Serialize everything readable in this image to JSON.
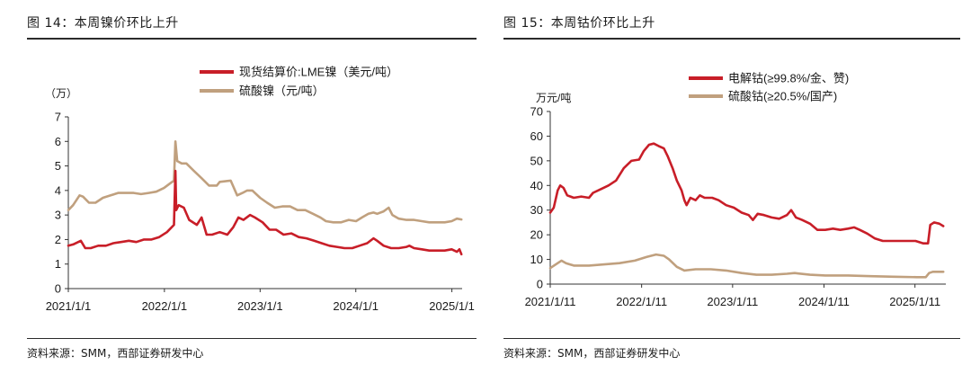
{
  "figures": [
    {
      "title": "图 14：本周镍价环比上升",
      "source": "资料来源：SMM，西部证券研发中心",
      "unit": "（万）",
      "legend": [
        "现货结算价:LME镍（美元/吨）",
        "硫酸镍（元/吨）"
      ]
    },
    {
      "title": "图 15：本周钴价环比上升",
      "source": "资料来源：SMM，西部证券研发中心",
      "unit": "万元/吨",
      "legend": [
        "电解钴(≥99.8%/金、赞)",
        "硫酸钴(≥20.5%/国产)"
      ]
    }
  ],
  "chart_data": [
    {
      "type": "line",
      "x_ticks": [
        "2021/1/1",
        "2022/1/1",
        "2023/1/1",
        "2024/1/1",
        "2025/1/1"
      ],
      "xlim": [
        "2021/1/1",
        "2025/5/1"
      ],
      "ylim": [
        0,
        7
      ],
      "y_ticks": [
        0,
        1,
        2,
        3,
        4,
        5,
        6,
        7
      ],
      "series": [
        {
          "name": "现货结算价:LME镍（美元/吨）",
          "color": "#c81e28",
          "points": [
            [
              "2021/1/1",
              1.75
            ],
            [
              "2021/1/20",
              1.8
            ],
            [
              "2021/2/20",
              1.95
            ],
            [
              "2021/3/10",
              1.65
            ],
            [
              "2021/4/1",
              1.65
            ],
            [
              "2021/5/1",
              1.75
            ],
            [
              "2021/6/1",
              1.75
            ],
            [
              "2021/7/1",
              1.85
            ],
            [
              "2021/8/1",
              1.9
            ],
            [
              "2021/9/1",
              1.95
            ],
            [
              "2021/10/1",
              1.9
            ],
            [
              "2021/11/1",
              2.0
            ],
            [
              "2021/12/1",
              2.0
            ],
            [
              "2022/1/1",
              2.1
            ],
            [
              "2022/2/1",
              2.3
            ],
            [
              "2022/3/1",
              2.6
            ],
            [
              "2022/3/7",
              4.8
            ],
            [
              "2022/3/10",
              3.2
            ],
            [
              "2022/3/20",
              3.4
            ],
            [
              "2022/4/10",
              3.3
            ],
            [
              "2022/5/1",
              2.8
            ],
            [
              "2022/6/1",
              2.6
            ],
            [
              "2022/6/20",
              2.9
            ],
            [
              "2022/7/10",
              2.2
            ],
            [
              "2022/8/1",
              2.2
            ],
            [
              "2022/9/1",
              2.3
            ],
            [
              "2022/10/1",
              2.2
            ],
            [
              "2022/10/25",
              2.5
            ],
            [
              "2022/11/15",
              2.9
            ],
            [
              "2022/12/5",
              2.8
            ],
            [
              "2023/1/1",
              3.0
            ],
            [
              "2023/1/20",
              2.9
            ],
            [
              "2023/2/20",
              2.7
            ],
            [
              "2023/3/20",
              2.4
            ],
            [
              "2023/4/15",
              2.4
            ],
            [
              "2023/5/15",
              2.2
            ],
            [
              "2023/6/15",
              2.25
            ],
            [
              "2023/7/15",
              2.1
            ],
            [
              "2023/8/15",
              2.05
            ],
            [
              "2023/9/15",
              1.95
            ],
            [
              "2023/10/15",
              1.85
            ],
            [
              "2023/11/15",
              1.75
            ],
            [
              "2023/12/15",
              1.7
            ],
            [
              "2024/1/15",
              1.65
            ],
            [
              "2024/2/15",
              1.65
            ],
            [
              "2024/3/15",
              1.75
            ],
            [
              "2024/4/15",
              1.85
            ],
            [
              "2024/5/10",
              2.05
            ],
            [
              "2024/5/25",
              1.95
            ],
            [
              "2024/6/20",
              1.75
            ],
            [
              "2024/7/20",
              1.65
            ],
            [
              "2024/8/20",
              1.65
            ],
            [
              "2024/9/20",
              1.7
            ],
            [
              "2024/10/1",
              1.75
            ],
            [
              "2024/10/20",
              1.65
            ],
            [
              "2024/11/20",
              1.6
            ],
            [
              "2024/12/20",
              1.55
            ],
            [
              "2025/1/20",
              1.55
            ],
            [
              "2025/2/20",
              1.55
            ],
            [
              "2025/3/20",
              1.6
            ],
            [
              "2025/4/10",
              1.5
            ],
            [
              "2025/4/20",
              1.6
            ],
            [
              "2025/4/28",
              1.4
            ]
          ]
        },
        {
          "name": "硫酸镍（元/吨）",
          "color": "#c0a07e",
          "points": [
            [
              "2021/1/1",
              3.2
            ],
            [
              "2021/1/20",
              3.4
            ],
            [
              "2021/2/15",
              3.8
            ],
            [
              "2021/3/1",
              3.75
            ],
            [
              "2021/3/25",
              3.5
            ],
            [
              "2021/4/20",
              3.5
            ],
            [
              "2021/5/20",
              3.7
            ],
            [
              "2021/6/20",
              3.8
            ],
            [
              "2021/7/20",
              3.9
            ],
            [
              "2021/8/20",
              3.9
            ],
            [
              "2021/9/20",
              3.9
            ],
            [
              "2021/10/20",
              3.85
            ],
            [
              "2021/11/20",
              3.9
            ],
            [
              "2021/12/20",
              3.95
            ],
            [
              "2022/1/20",
              4.1
            ],
            [
              "2022/2/15",
              4.3
            ],
            [
              "2022/3/1",
              4.4
            ],
            [
              "2022/3/7",
              6.0
            ],
            [
              "2022/3/14",
              5.2
            ],
            [
              "2022/4/1",
              5.1
            ],
            [
              "2022/4/20",
              5.1
            ],
            [
              "2022/5/20",
              4.8
            ],
            [
              "2022/6/20",
              4.5
            ],
            [
              "2022/7/20",
              4.2
            ],
            [
              "2022/8/20",
              4.2
            ],
            [
              "2022/9/1",
              4.35
            ],
            [
              "2022/10/15",
              4.4
            ],
            [
              "2022/11/10",
              3.8
            ],
            [
              "2022/12/1",
              3.9
            ],
            [
              "2022/12/20",
              4.0
            ],
            [
              "2023/1/10",
              4.0
            ],
            [
              "2023/2/10",
              3.7
            ],
            [
              "2023/3/10",
              3.5
            ],
            [
              "2023/4/10",
              3.3
            ],
            [
              "2023/5/10",
              3.35
            ],
            [
              "2023/6/10",
              3.35
            ],
            [
              "2023/7/10",
              3.2
            ],
            [
              "2023/8/10",
              3.2
            ],
            [
              "2023/9/10",
              3.05
            ],
            [
              "2023/10/10",
              2.9
            ],
            [
              "2023/11/1",
              2.75
            ],
            [
              "2023/12/1",
              2.7
            ],
            [
              "2024/1/1",
              2.7
            ],
            [
              "2024/2/1",
              2.8
            ],
            [
              "2024/3/1",
              2.75
            ],
            [
              "2024/3/25",
              2.9
            ],
            [
              "2024/4/20",
              3.05
            ],
            [
              "2024/5/10",
              3.1
            ],
            [
              "2024/5/25",
              3.05
            ],
            [
              "2024/6/20",
              3.15
            ],
            [
              "2024/7/10",
              3.3
            ],
            [
              "2024/7/25",
              3.0
            ],
            [
              "2024/8/20",
              2.85
            ],
            [
              "2024/9/20",
              2.8
            ],
            [
              "2024/10/20",
              2.8
            ],
            [
              "2024/11/20",
              2.75
            ],
            [
              "2024/12/20",
              2.7
            ],
            [
              "2025/1/20",
              2.7
            ],
            [
              "2025/2/20",
              2.7
            ],
            [
              "2025/3/20",
              2.75
            ],
            [
              "2025/4/10",
              2.85
            ],
            [
              "2025/4/28",
              2.82
            ]
          ]
        }
      ]
    },
    {
      "type": "line",
      "x_ticks": [
        "2021/1/11",
        "2022/1/11",
        "2023/1/11",
        "2024/1/11",
        "2025/1/11"
      ],
      "xlim": [
        "2021/1/11",
        "2025/5/11"
      ],
      "ylim": [
        0,
        70
      ],
      "y_ticks": [
        0,
        10,
        20,
        30,
        40,
        50,
        60,
        70
      ],
      "series": [
        {
          "name": "电解钴(≥99.8%/金、赞)",
          "color": "#c81e28",
          "points": [
            [
              "2021/1/11",
              29
            ],
            [
              "2021/1/25",
              31
            ],
            [
              "2021/2/10",
              38
            ],
            [
              "2021/2/20",
              40
            ],
            [
              "2021/3/5",
              39
            ],
            [
              "2021/3/20",
              36
            ],
            [
              "2021/4/15",
              35
            ],
            [
              "2021/5/15",
              35.5
            ],
            [
              "2021/6/15",
              35
            ],
            [
              "2021/7/1",
              37
            ],
            [
              "2021/8/1",
              38.5
            ],
            [
              "2021/9/1",
              40
            ],
            [
              "2021/10/1",
              42
            ],
            [
              "2021/11/1",
              47
            ],
            [
              "2021/12/1",
              50
            ],
            [
              "2022/1/1",
              50.5
            ],
            [
              "2022/1/20",
              54
            ],
            [
              "2022/2/10",
              56.5
            ],
            [
              "2022/3/1",
              57
            ],
            [
              "2022/3/20",
              56
            ],
            [
              "2022/4/10",
              55
            ],
            [
              "2022/4/25",
              52
            ],
            [
              "2022/5/15",
              47
            ],
            [
              "2022/6/1",
              42
            ],
            [
              "2022/6/20",
              38
            ],
            [
              "2022/7/1",
              34
            ],
            [
              "2022/7/10",
              32
            ],
            [
              "2022/7/25",
              35
            ],
            [
              "2022/8/15",
              34
            ],
            [
              "2022/9/1",
              36
            ],
            [
              "2022/9/20",
              35
            ],
            [
              "2022/10/20",
              35
            ],
            [
              "2022/11/15",
              34
            ],
            [
              "2022/12/15",
              32
            ],
            [
              "2023/1/15",
              31
            ],
            [
              "2023/2/15",
              29
            ],
            [
              "2023/3/15",
              28
            ],
            [
              "2023/4/1",
              26
            ],
            [
              "2023/4/20",
              28.5
            ],
            [
              "2023/5/15",
              28
            ],
            [
              "2023/6/15",
              27
            ],
            [
              "2023/7/15",
              26.5
            ],
            [
              "2023/8/15",
              28
            ],
            [
              "2023/9/1",
              30
            ],
            [
              "2023/9/20",
              27
            ],
            [
              "2023/10/15",
              26
            ],
            [
              "2023/11/15",
              24.5
            ],
            [
              "2023/12/15",
              22
            ],
            [
              "2024/1/15",
              22
            ],
            [
              "2024/2/15",
              22.5
            ],
            [
              "2024/3/15",
              22
            ],
            [
              "2024/4/15",
              22.5
            ],
            [
              "2024/5/10",
              23
            ],
            [
              "2024/6/1",
              22
            ],
            [
              "2024/7/1",
              20.5
            ],
            [
              "2024/8/1",
              18.5
            ],
            [
              "2024/9/1",
              17.5
            ],
            [
              "2024/10/1",
              17.5
            ],
            [
              "2024/11/1",
              17.5
            ],
            [
              "2024/12/1",
              17.5
            ],
            [
              "2025/1/10",
              17.5
            ],
            [
              "2025/2/10",
              16.5
            ],
            [
              "2025/3/1",
              16.5
            ],
            [
              "2025/3/10",
              24
            ],
            [
              "2025/3/25",
              25
            ],
            [
              "2025/4/15",
              24.5
            ],
            [
              "2025/5/1",
              23.5
            ]
          ]
        },
        {
          "name": "硫酸钴(≥20.5%/国产)",
          "color": "#c0a07e",
          "points": [
            [
              "2021/1/11",
              6.5
            ],
            [
              "2021/2/10",
              8.5
            ],
            [
              "2021/2/25",
              9.5
            ],
            [
              "2021/3/15",
              8.5
            ],
            [
              "2021/4/15",
              7.5
            ],
            [
              "2021/6/15",
              7.5
            ],
            [
              "2021/8/15",
              8
            ],
            [
              "2021/10/15",
              8.5
            ],
            [
              "2021/12/15",
              9.5
            ],
            [
              "2022/2/1",
              11
            ],
            [
              "2022/3/10",
              12
            ],
            [
              "2022/4/10",
              11.5
            ],
            [
              "2022/5/1",
              10
            ],
            [
              "2022/6/1",
              7
            ],
            [
              "2022/7/1",
              5.5
            ],
            [
              "2022/8/15",
              6
            ],
            [
              "2022/10/15",
              6
            ],
            [
              "2022/12/15",
              5.5
            ],
            [
              "2023/2/15",
              4.5
            ],
            [
              "2023/4/15",
              3.8
            ],
            [
              "2023/6/15",
              3.8
            ],
            [
              "2023/8/15",
              4.2
            ],
            [
              "2023/9/15",
              4.5
            ],
            [
              "2023/11/15",
              3.8
            ],
            [
              "2024/1/15",
              3.5
            ],
            [
              "2024/4/15",
              3.5
            ],
            [
              "2024/7/15",
              3.2
            ],
            [
              "2024/10/15",
              3.0
            ],
            [
              "2025/1/15",
              2.8
            ],
            [
              "2025/2/20",
              2.8
            ],
            [
              "2025/3/5",
              4.5
            ],
            [
              "2025/3/20",
              5
            ],
            [
              "2025/5/1",
              5
            ]
          ]
        }
      ]
    }
  ]
}
